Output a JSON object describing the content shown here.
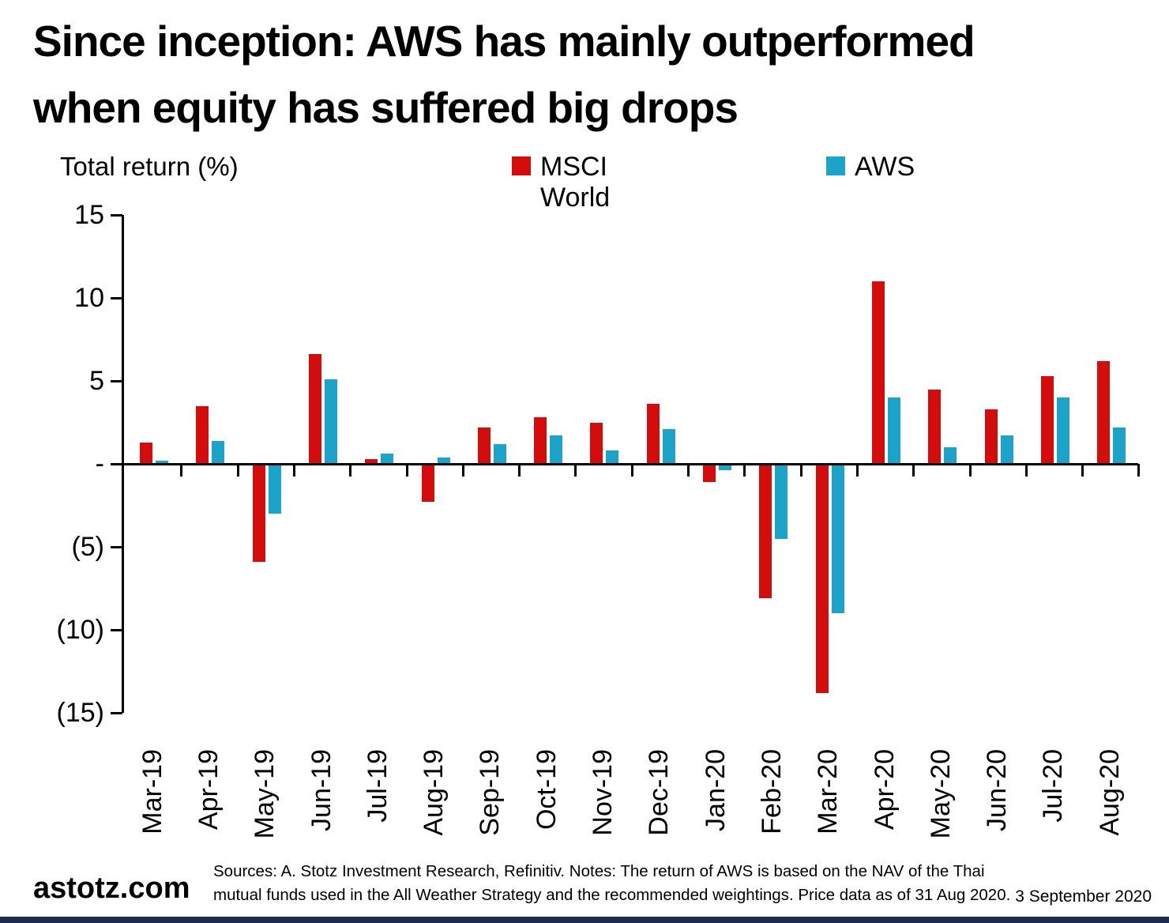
{
  "title": {
    "line1": "Since inception: AWS has mainly outperformed",
    "line2": "when equity has suffered big drops"
  },
  "axis_unit_label": "Total return (%)",
  "legend": [
    {
      "label": "MSCI World",
      "color": "#D50C0C"
    },
    {
      "label": "AWS",
      "color": "#1CA3C9"
    }
  ],
  "chart_data": {
    "type": "bar",
    "title": "Since inception: AWS has mainly outperformed when equity has suffered big drops",
    "ylabel": "Total return (%)",
    "xlabel": "",
    "ylim": [
      -15,
      15
    ],
    "grid": false,
    "legend_position": "top",
    "categories": [
      "Mar-19",
      "Apr-19",
      "May-19",
      "Jun-19",
      "Jul-19",
      "Aug-19",
      "Sep-19",
      "Oct-19",
      "Nov-19",
      "Dec-19",
      "Jan-20",
      "Feb-20",
      "Mar-20",
      "Apr-20",
      "May-20",
      "Jun-20",
      "Jul-20",
      "Aug-20"
    ],
    "series": [
      {
        "name": "MSCI World",
        "color": "#D50C0C",
        "values": [
          1.3,
          3.5,
          -5.9,
          6.6,
          0.3,
          -2.3,
          2.2,
          2.8,
          2.5,
          3.6,
          -1.1,
          -8.1,
          -13.8,
          11.0,
          4.5,
          3.3,
          5.3,
          6.2
        ]
      },
      {
        "name": "AWS",
        "color": "#1CA3C9",
        "values": [
          0.2,
          1.4,
          -3.0,
          5.1,
          0.6,
          0.4,
          1.2,
          1.7,
          0.8,
          2.1,
          -0.4,
          -4.5,
          -9.0,
          4.0,
          1.0,
          1.7,
          4.0,
          2.2
        ]
      }
    ],
    "ytick_values": [
      15,
      10,
      5,
      0,
      -5,
      -10,
      -15
    ],
    "ytick_labels": [
      "15",
      "10",
      "5",
      "-",
      "(5)",
      "(10)",
      "(15)"
    ]
  },
  "footer": {
    "brand": "astotz.com",
    "source_line1": "Sources: A. Stotz Investment Research, Refinitiv. Notes: The return of AWS is based on the NAV of the Thai",
    "source_line2": "mutual funds used in the All Weather Strategy and the recommended weightings. Price data as of 31 Aug 2020.",
    "date": "3 September 2020"
  },
  "colors": {
    "bottom_strip": "#1B2B4B",
    "axis": "#000000"
  }
}
